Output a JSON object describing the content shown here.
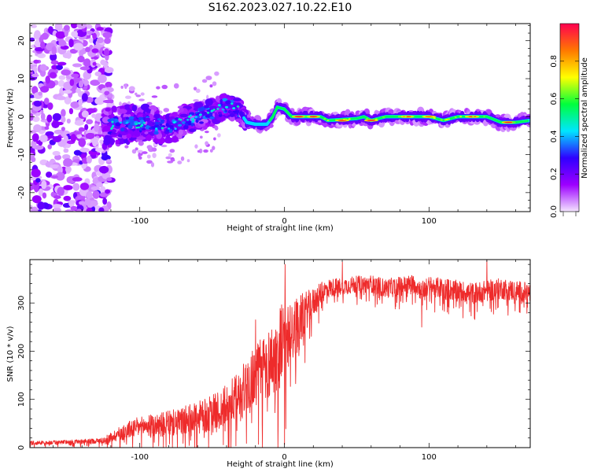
{
  "figure": {
    "title": "S162.2023.027.10.22.E10"
  },
  "chart_data": [
    {
      "type": "heatmap",
      "xlabel": "Height of straight line (km)",
      "ylabel": "Frequency (Hz)",
      "xlim": [
        -176,
        170
      ],
      "ylim": [
        -25,
        24.5
      ],
      "xticks": [
        -100,
        0,
        100
      ],
      "yticks": [
        -20,
        -10,
        0,
        10,
        20
      ],
      "colorbar": {
        "label": "Normalized spectral amplitude",
        "range": [
          0,
          1
        ],
        "ticks": [
          "0.0",
          "0.2",
          "0.4",
          "0.6",
          "0.8"
        ],
        "tick_values": [
          0.0,
          0.2,
          0.4,
          0.6,
          0.8
        ],
        "colors": [
          "#f4e6ff",
          "#9d00ff",
          "#2f00ff",
          "#00e6ff",
          "#00ff3c",
          "#ffff00",
          "#ff7800",
          "#ff0050"
        ]
      },
      "grid": false,
      "description_points": {
        "ridge": [
          {
            "x": -125,
            "y": -3.0
          },
          {
            "x": -110,
            "y": -2.0
          },
          {
            "x": -95,
            "y": -1.5
          },
          {
            "x": -80,
            "y": -3.5
          },
          {
            "x": -70,
            "y": -1.0
          },
          {
            "x": -55,
            "y": 0.5
          },
          {
            "x": -42,
            "y": 2.5
          },
          {
            "x": -32,
            "y": 2.0
          },
          {
            "x": -26,
            "y": -1.5
          },
          {
            "x": -20,
            "y": -2.0
          },
          {
            "x": -12,
            "y": -2.0
          },
          {
            "x": -8,
            "y": 0.0
          },
          {
            "x": -5,
            "y": 2.5
          },
          {
            "x": 0,
            "y": 2.0
          },
          {
            "x": 5,
            "y": 0.0
          },
          {
            "x": 25,
            "y": 0.0
          },
          {
            "x": 30,
            "y": -1.0
          },
          {
            "x": 50,
            "y": -0.5
          },
          {
            "x": 55,
            "y": 0.0
          },
          {
            "x": 60,
            "y": -1.0
          },
          {
            "x": 70,
            "y": 0.0
          },
          {
            "x": 100,
            "y": 0.0
          },
          {
            "x": 110,
            "y": -1.0
          },
          {
            "x": 120,
            "y": 0.0
          },
          {
            "x": 140,
            "y": 0.0
          },
          {
            "x": 150,
            "y": -1.5
          },
          {
            "x": 160,
            "y": -1.5
          },
          {
            "x": 170,
            "y": -1.0
          }
        ],
        "peaks": [
          {
            "x": 10,
            "y": 0.0,
            "value": 0.95
          },
          {
            "x": 20,
            "y": 0.0,
            "value": 0.92
          },
          {
            "x": 40,
            "y": -1.0,
            "value": 0.9
          },
          {
            "x": 60,
            "y": -1.0,
            "value": 0.92
          },
          {
            "x": 85,
            "y": 0.0,
            "value": 0.9
          },
          {
            "x": 100,
            "y": 0.0,
            "value": 0.85
          },
          {
            "x": 130,
            "y": 0.0,
            "value": 0.9
          },
          {
            "x": 155,
            "y": -1.5,
            "value": 0.95
          }
        ]
      }
    },
    {
      "type": "line",
      "xlabel": "Height of straight line (km)",
      "ylabel": "SNR (10 * v/v)",
      "xlim": [
        -176,
        170
      ],
      "ylim": [
        0,
        390
      ],
      "xticks": [
        -100,
        0,
        100
      ],
      "yticks": [
        0,
        100,
        200,
        300
      ],
      "grid": false,
      "series": [
        {
          "color": "#ee2b2b",
          "x": [
            -176,
            -165,
            -150,
            -135,
            -125,
            -115,
            -105,
            -95,
            -85,
            -75,
            -65,
            -55,
            -45,
            -38,
            -30,
            -25,
            -20,
            -15,
            -10,
            -5,
            -2,
            0,
            5,
            10,
            15,
            20,
            25,
            30,
            40,
            50,
            60,
            70,
            80,
            90,
            95,
            100,
            110,
            120,
            130,
            140,
            150,
            160,
            170
          ],
          "values": [
            10,
            10,
            12,
            13,
            15,
            28,
            40,
            45,
            48,
            52,
            58,
            65,
            75,
            90,
            110,
            135,
            150,
            165,
            175,
            190,
            220,
            200,
            235,
            260,
            285,
            300,
            320,
            330,
            335,
            338,
            340,
            330,
            335,
            340,
            325,
            335,
            330,
            325,
            320,
            325,
            330,
            325,
            320
          ],
          "noise": [
            4,
            4,
            4,
            5,
            6,
            14,
            20,
            22,
            25,
            28,
            32,
            36,
            42,
            48,
            55,
            60,
            65,
            70,
            75,
            80,
            90,
            85,
            70,
            55,
            40,
            30,
            22,
            20,
            18,
            18,
            18,
            20,
            20,
            20,
            20,
            20,
            22,
            22,
            22,
            22,
            22,
            22,
            22
          ],
          "spikes": [
            {
              "x": 0.5,
              "y": 380
            },
            {
              "x": -20,
              "y": 265
            },
            {
              "x": 95,
              "y": 250
            },
            {
              "x": 140,
              "y": 390
            },
            {
              "x": 40,
              "y": 385
            },
            {
              "x": 163,
              "y": 280
            }
          ]
        }
      ]
    }
  ]
}
